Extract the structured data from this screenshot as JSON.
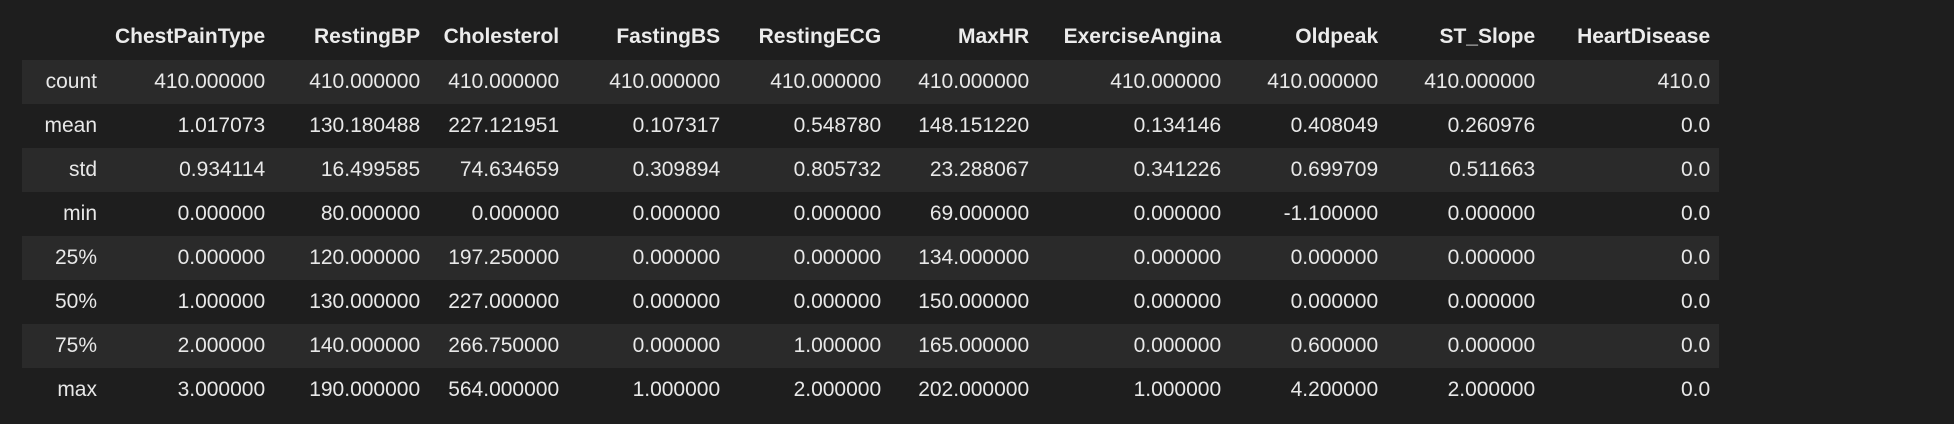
{
  "table": {
    "columns": [
      "ChestPainType",
      "RestingBP",
      "Cholesterol",
      "FastingBS",
      "RestingECG",
      "MaxHR",
      "ExerciseAngina",
      "Oldpeak",
      "ST_Slope",
      "HeartDisease"
    ],
    "rows": [
      {
        "label": "count",
        "values": [
          "410.000000",
          "410.000000",
          "410.000000",
          "410.000000",
          "410.000000",
          "410.000000",
          "410.000000",
          "410.000000",
          "410.000000",
          "410.0"
        ]
      },
      {
        "label": "mean",
        "values": [
          "1.017073",
          "130.180488",
          "227.121951",
          "0.107317",
          "0.548780",
          "148.151220",
          "0.134146",
          "0.408049",
          "0.260976",
          "0.0"
        ]
      },
      {
        "label": "std",
        "values": [
          "0.934114",
          "16.499585",
          "74.634659",
          "0.309894",
          "0.805732",
          "23.288067",
          "0.341226",
          "0.699709",
          "0.511663",
          "0.0"
        ]
      },
      {
        "label": "min",
        "values": [
          "0.000000",
          "80.000000",
          "0.000000",
          "0.000000",
          "0.000000",
          "69.000000",
          "0.000000",
          "-1.100000",
          "0.000000",
          "0.0"
        ]
      },
      {
        "label": "25%",
        "values": [
          "0.000000",
          "120.000000",
          "197.250000",
          "0.000000",
          "0.000000",
          "134.000000",
          "0.000000",
          "0.000000",
          "0.000000",
          "0.0"
        ]
      },
      {
        "label": "50%",
        "values": [
          "1.000000",
          "130.000000",
          "227.000000",
          "0.000000",
          "0.000000",
          "150.000000",
          "0.000000",
          "0.000000",
          "0.000000",
          "0.0"
        ]
      },
      {
        "label": "75%",
        "values": [
          "2.000000",
          "140.000000",
          "266.750000",
          "0.000000",
          "1.000000",
          "165.000000",
          "0.000000",
          "0.600000",
          "0.000000",
          "0.0"
        ]
      },
      {
        "label": "max",
        "values": [
          "3.000000",
          "190.000000",
          "564.000000",
          "1.000000",
          "2.000000",
          "202.000000",
          "1.000000",
          "4.200000",
          "2.000000",
          "0.0"
        ]
      }
    ]
  },
  "colors": {
    "background": "#1e1e1e",
    "stripe": "#2a2a2a",
    "text": "#e8e8e8"
  }
}
